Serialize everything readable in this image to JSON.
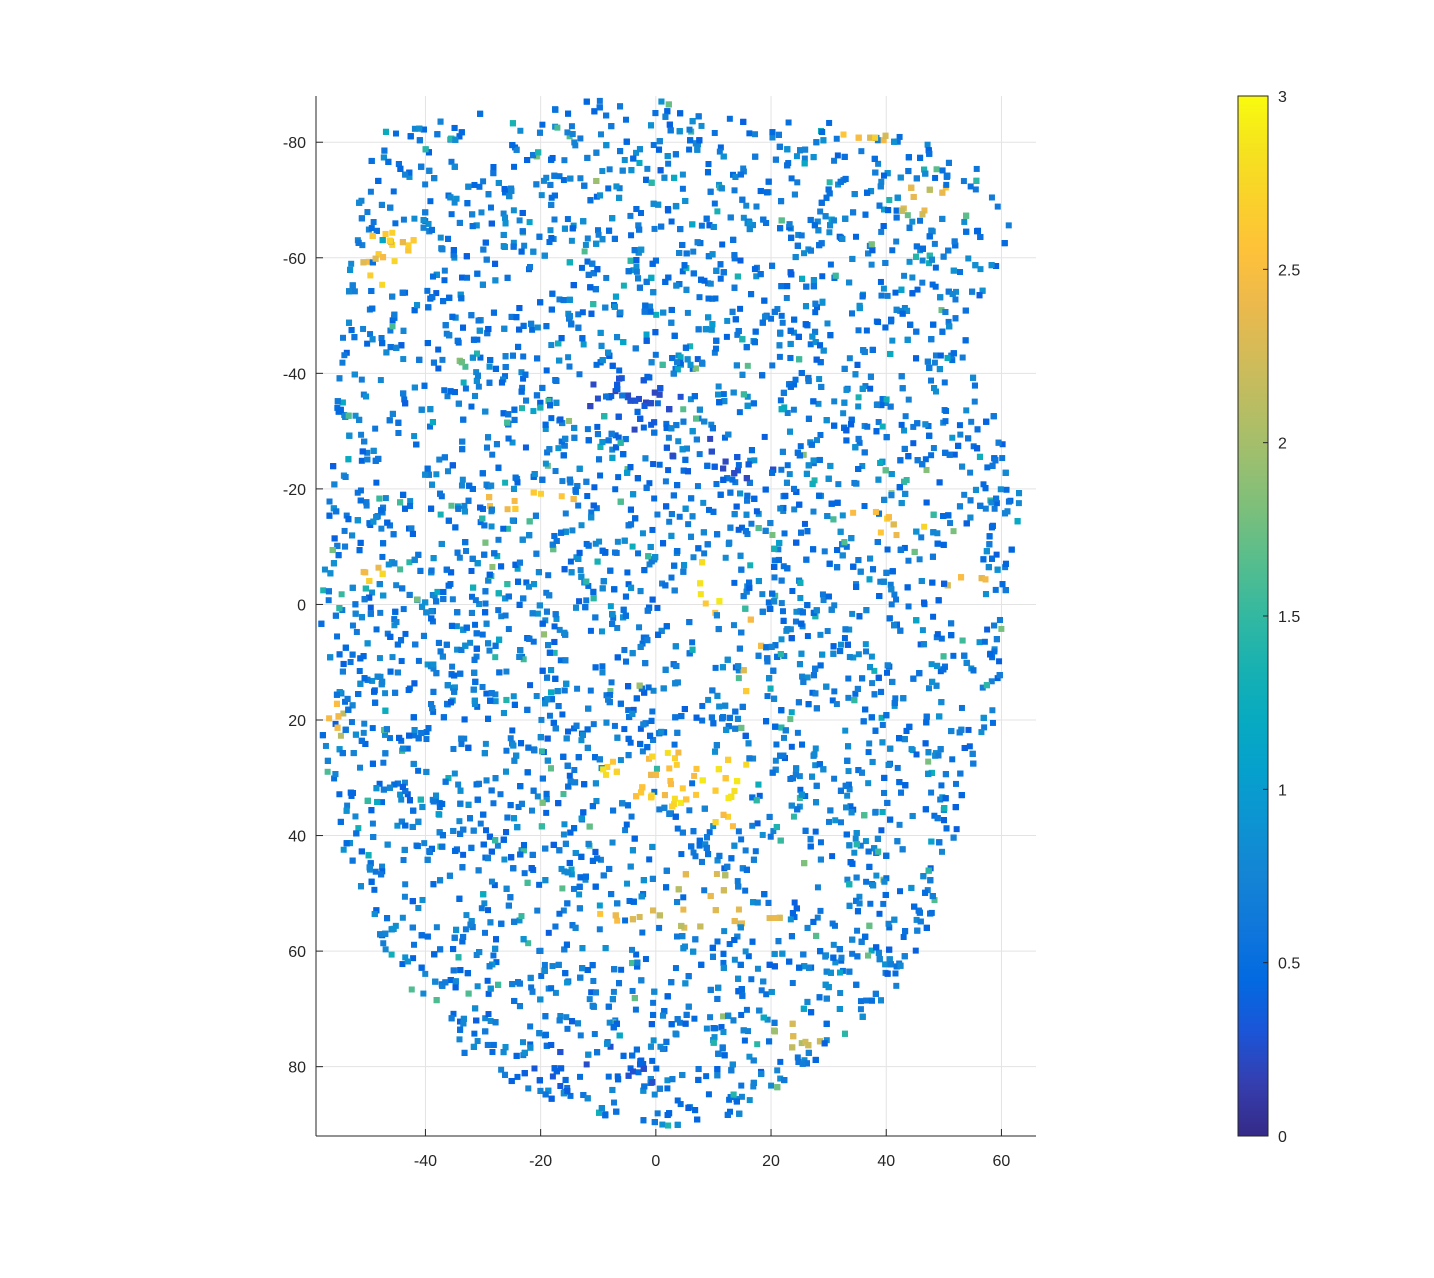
{
  "chart_data": {
    "type": "scatter",
    "title": "",
    "xlabel": "",
    "ylabel": "",
    "xlim": [
      -59,
      66
    ],
    "ylim": [
      -88,
      92
    ],
    "y_reversed": true,
    "grid": true,
    "x_ticks": [
      -40,
      -20,
      0,
      20,
      40,
      60
    ],
    "y_ticks": [
      -80,
      -60,
      -40,
      -20,
      0,
      20,
      40,
      60,
      80
    ],
    "colormap": "parula",
    "colorbar": {
      "placement": "right",
      "limits": [
        0,
        3
      ],
      "ticks": [
        0,
        0.5,
        1,
        1.5,
        2,
        2.5,
        3
      ]
    },
    "description_points": {
      "outline": [
        [
          -4,
          -88
        ],
        [
          10,
          -86
        ],
        [
          20,
          -84
        ],
        [
          36,
          -83
        ],
        [
          50,
          -79
        ],
        [
          58,
          -74
        ],
        [
          62,
          -66
        ],
        [
          60,
          -58
        ],
        [
          54,
          -50
        ],
        [
          54,
          -42
        ],
        [
          60,
          -30
        ],
        [
          64,
          -20
        ],
        [
          62,
          -8
        ],
        [
          60,
          5
        ],
        [
          62,
          15
        ],
        [
          56,
          26
        ],
        [
          52,
          40
        ],
        [
          50,
          52
        ],
        [
          42,
          66
        ],
        [
          32,
          76
        ],
        [
          22,
          85
        ],
        [
          10,
          91
        ],
        [
          -4,
          90
        ],
        [
          -20,
          86
        ],
        [
          -34,
          78
        ],
        [
          -42,
          68
        ],
        [
          -48,
          58
        ],
        [
          -54,
          44
        ],
        [
          -58,
          28
        ],
        [
          -59,
          10
        ],
        [
          -58,
          -10
        ],
        [
          -56,
          -30
        ],
        [
          -54,
          -50
        ],
        [
          -52,
          -68
        ],
        [
          -48,
          -82
        ],
        [
          -30,
          -86
        ],
        [
          -14,
          -87
        ]
      ],
      "high_regions": [
        {
          "x": -46,
          "y": -60,
          "rx": 5,
          "ry": 6,
          "v": 2.8
        },
        {
          "x": -22,
          "y": -18,
          "rx": 8,
          "ry": 2,
          "v": 2.7
        },
        {
          "x": 40,
          "y": -14,
          "rx": 9,
          "ry": 2.5,
          "v": 2.8
        },
        {
          "x": 8,
          "y": -2,
          "rx": 4,
          "ry": 6,
          "v": 2.9
        },
        {
          "x": 17,
          "y": 12,
          "rx": 2,
          "ry": 10,
          "v": 2.7
        },
        {
          "x": 4,
          "y": 30,
          "rx": 14,
          "ry": 5,
          "v": 2.9
        },
        {
          "x": 12,
          "y": 37,
          "rx": 4,
          "ry": 3,
          "v": 2.8
        },
        {
          "x": 8,
          "y": 48,
          "rx": 6,
          "ry": 3,
          "v": 2.5
        },
        {
          "x": 5,
          "y": 54,
          "rx": 18,
          "ry": 2,
          "v": 2.6
        },
        {
          "x": 38,
          "y": -82,
          "rx": 8,
          "ry": 2,
          "v": 2.7
        },
        {
          "x": 47,
          "y": -70,
          "rx": 6,
          "ry": 3,
          "v": 2.6
        },
        {
          "x": -50,
          "y": -5,
          "rx": 5,
          "ry": 2,
          "v": 2.8
        },
        {
          "x": 54,
          "y": -5,
          "rx": 4,
          "ry": 4,
          "v": 2.6
        },
        {
          "x": 25,
          "y": 74,
          "rx": 5,
          "ry": 3,
          "v": 2.4
        },
        {
          "x": -55,
          "y": 20,
          "rx": 2,
          "ry": 3,
          "v": 2.5
        }
      ],
      "low_regions": [
        {
          "x": -5,
          "y": -35,
          "rx": 10,
          "ry": 5,
          "v": 0.15
        },
        {
          "x": 10,
          "y": -25,
          "rx": 12,
          "ry": 4,
          "v": 0.2
        },
        {
          "x": 0,
          "y": 18,
          "rx": 8,
          "ry": 3,
          "v": 0.3
        },
        {
          "x": -10,
          "y": 80,
          "rx": 14,
          "ry": 4,
          "v": 0.25
        }
      ]
    }
  }
}
